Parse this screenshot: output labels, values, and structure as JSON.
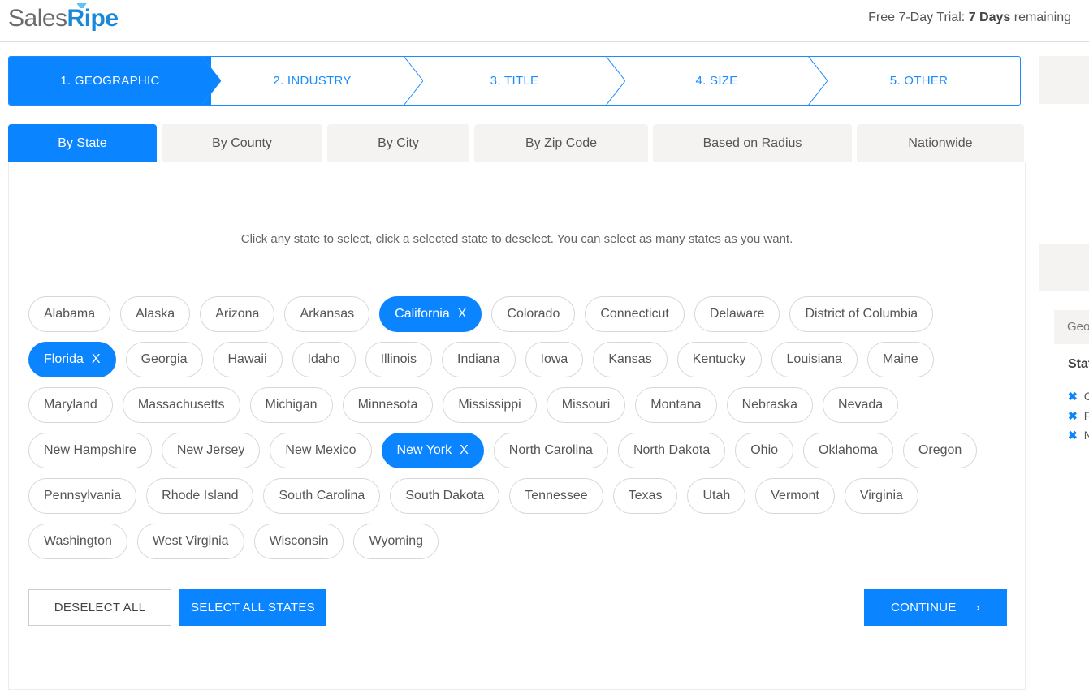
{
  "header": {
    "logo_part1": "Sales",
    "logo_part2": "Ripe",
    "trial_prefix": "Free 7-Day Trial: ",
    "trial_days": "7 Days",
    "trial_suffix": " remaining"
  },
  "steps": [
    {
      "label": "1. GEOGRAPHIC",
      "active": true
    },
    {
      "label": "2. INDUSTRY"
    },
    {
      "label": "3. TITLE"
    },
    {
      "label": "4. SIZE"
    },
    {
      "label": "5. OTHER"
    }
  ],
  "tabs": [
    {
      "label": "By State",
      "active": true
    },
    {
      "label": "By County"
    },
    {
      "label": "By City"
    },
    {
      "label": "By Zip Code"
    },
    {
      "label": "Based on Radius"
    },
    {
      "label": "Nationwide"
    }
  ],
  "instruction": "Click any state to select, click a selected state to deselect. You can select as many states as you want.",
  "deselect_icon": "X",
  "states": [
    [
      {
        "n": "Alabama"
      },
      {
        "n": "Alaska"
      },
      {
        "n": "Arizona"
      },
      {
        "n": "Arkansas"
      },
      {
        "n": "California",
        "s": true
      },
      {
        "n": "Colorado"
      },
      {
        "n": "Connecticut"
      },
      {
        "n": "Delaware"
      },
      {
        "n": "District of Columbia"
      }
    ],
    [
      {
        "n": "Florida",
        "s": true
      },
      {
        "n": "Georgia"
      },
      {
        "n": "Hawaii"
      },
      {
        "n": "Idaho"
      },
      {
        "n": "Illinois"
      },
      {
        "n": "Indiana"
      },
      {
        "n": "Iowa"
      },
      {
        "n": "Kansas"
      },
      {
        "n": "Kentucky"
      },
      {
        "n": "Louisiana"
      },
      {
        "n": "Maine"
      }
    ],
    [
      {
        "n": "Maryland"
      },
      {
        "n": "Massachusetts"
      },
      {
        "n": "Michigan"
      },
      {
        "n": "Minnesota"
      },
      {
        "n": "Mississippi"
      },
      {
        "n": "Missouri"
      },
      {
        "n": "Montana"
      },
      {
        "n": "Nebraska"
      },
      {
        "n": "Nevada"
      }
    ],
    [
      {
        "n": "New Hampshire"
      },
      {
        "n": "New Jersey"
      },
      {
        "n": "New Mexico"
      },
      {
        "n": "New York",
        "s": true
      },
      {
        "n": "North Carolina"
      },
      {
        "n": "North Dakota"
      },
      {
        "n": "Ohio"
      },
      {
        "n": "Oklahoma"
      },
      {
        "n": "Oregon"
      }
    ],
    [
      {
        "n": "Pennsylvania"
      },
      {
        "n": "Rhode Island"
      },
      {
        "n": "South Carolina"
      },
      {
        "n": "South Dakota"
      },
      {
        "n": "Tennessee"
      },
      {
        "n": "Texas"
      },
      {
        "n": "Utah"
      },
      {
        "n": "Vermont"
      },
      {
        "n": "Virginia"
      }
    ],
    [
      {
        "n": "Washington"
      },
      {
        "n": "West Virginia"
      },
      {
        "n": "Wisconsin"
      },
      {
        "n": "Wyoming"
      }
    ]
  ],
  "buttons": {
    "deselect_all": "DESELECT ALL",
    "select_all": "SELECT ALL STATES",
    "continue": "CONTINUE",
    "continue_icon": "›"
  },
  "sidebar": {
    "section": "Geographic",
    "heading": "States",
    "selected": [
      "California",
      "Florida",
      "New York"
    ],
    "remove_icon": "✖"
  },
  "colors": {
    "accent": "#0a84ff",
    "tab_bg": "#f4f3f1"
  }
}
